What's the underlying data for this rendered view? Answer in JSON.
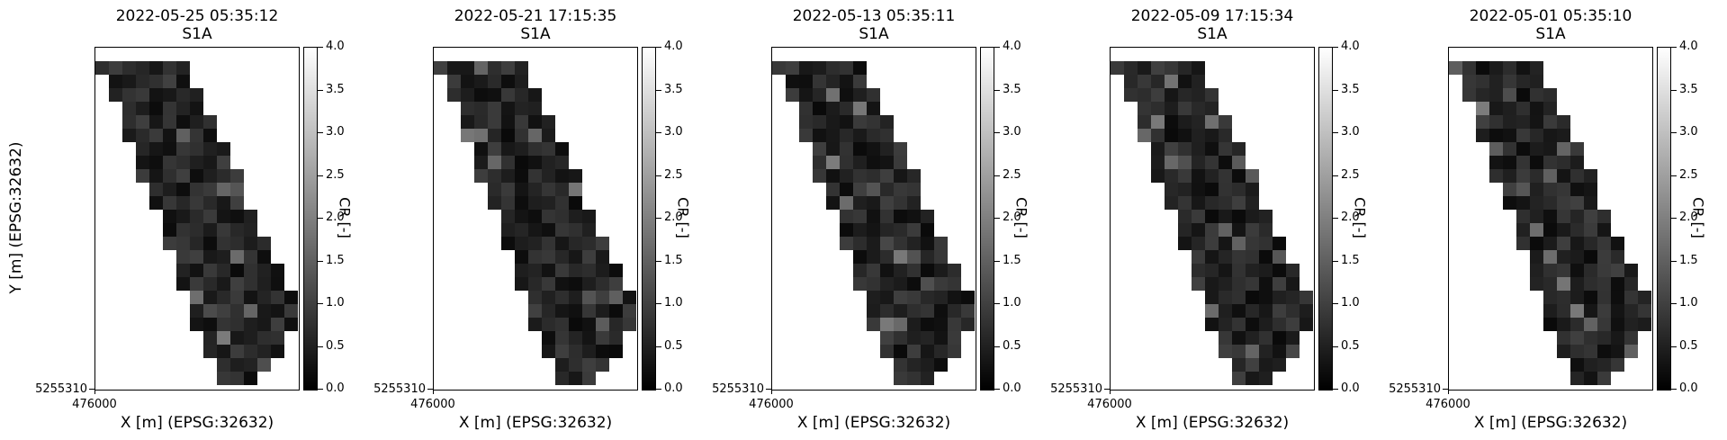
{
  "figure": {
    "ylabel": "Y [m] (EPSG:32632)",
    "xlabel": "X [m] (EPSG:32632)",
    "colorbar_label": "CR [-]",
    "colormap": "gray",
    "colorbar_ticks": [
      "0.0",
      "0.5",
      "1.0",
      "1.5",
      "2.0",
      "2.5",
      "3.0",
      "3.5",
      "4.0"
    ],
    "x_tick_label": "476000",
    "y_tick_label": "5255310"
  },
  "chart_data": [
    {
      "type": "heatmap",
      "title": "2022-05-25 05:35:12",
      "subtitle": "S1A",
      "xlabel": "X [m] (EPSG:32632)",
      "ylabel": "Y [m] (EPSG:32632)",
      "colorbar_label": "CR [-]",
      "color_range": [
        0,
        4
      ]
    },
    {
      "type": "heatmap",
      "title": "2022-05-21 17:15:35",
      "subtitle": "S1A",
      "xlabel": "X [m] (EPSG:32632)",
      "ylabel": "",
      "colorbar_label": "CR [-]",
      "color_range": [
        0,
        4
      ]
    },
    {
      "type": "heatmap",
      "title": "2022-05-13 05:35:11",
      "subtitle": "S1A",
      "xlabel": "X [m] (EPSG:32632)",
      "ylabel": "",
      "colorbar_label": "CR [-]",
      "color_range": [
        0,
        4
      ]
    },
    {
      "type": "heatmap",
      "title": "2022-05-09 17:15:34",
      "subtitle": "S1A",
      "xlabel": "X [m] (EPSG:32632)",
      "ylabel": "",
      "colorbar_label": "CR [-]",
      "color_range": [
        0,
        4
      ]
    },
    {
      "type": "heatmap",
      "title": "2022-05-01 05:35:10",
      "subtitle": "S1A",
      "xlabel": "X [m] (EPSG:32632)",
      "ylabel": "",
      "colorbar_label": "CR [-]",
      "color_range": [
        0,
        4
      ]
    }
  ]
}
